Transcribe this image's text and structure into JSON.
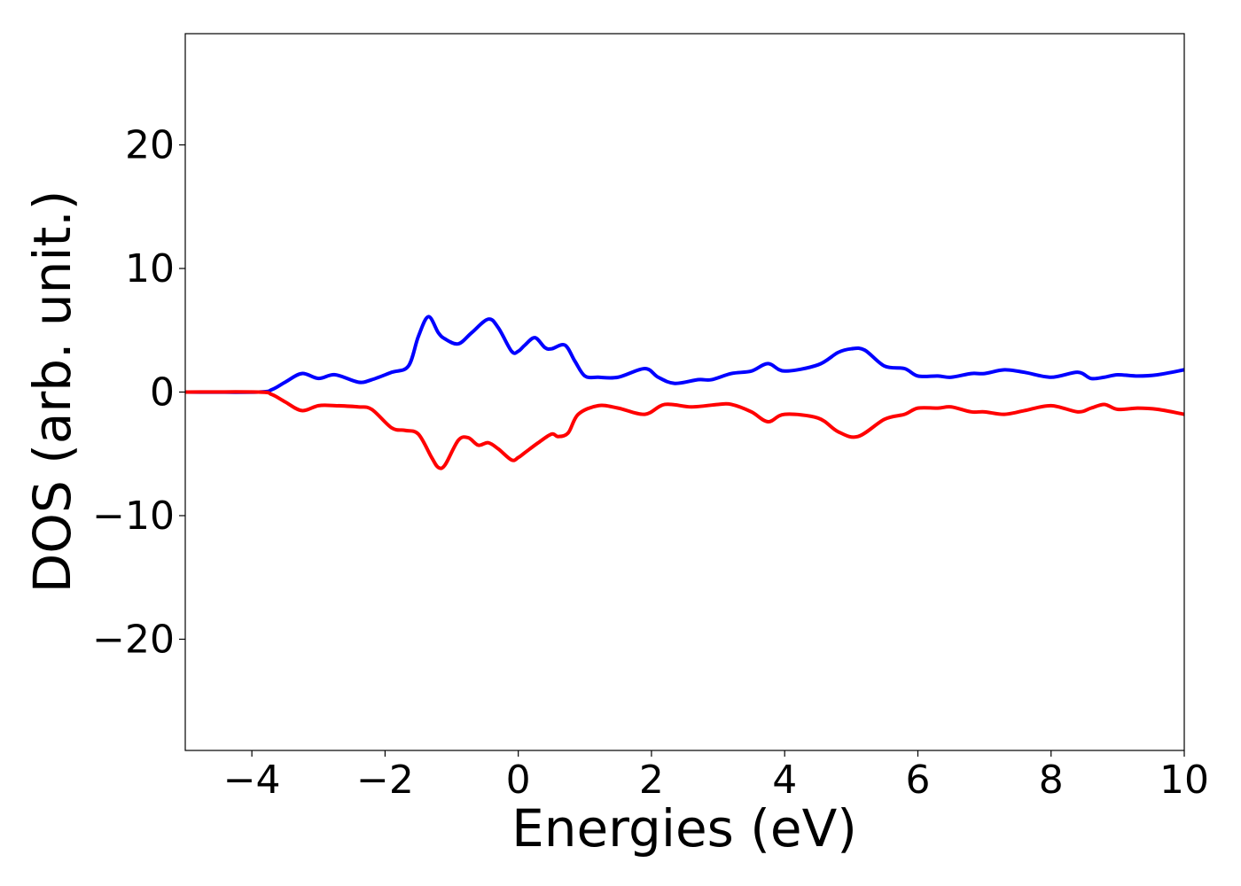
{
  "chart_data": {
    "type": "line",
    "title": "",
    "xlabel": "Energies (eV)",
    "ylabel": "DOS (arb. unit.)",
    "xlim": [
      -5,
      10
    ],
    "ylim": [
      -29,
      29
    ],
    "xticks": [
      -4,
      -2,
      0,
      2,
      4,
      6,
      8,
      10
    ],
    "xtick_labels": [
      "−4",
      "−2",
      "0",
      "2",
      "4",
      "6",
      "8",
      "10"
    ],
    "yticks": [
      20,
      10,
      0,
      -10,
      -20
    ],
    "ytick_labels": [
      "20",
      "10",
      "0",
      "−10",
      "−20"
    ],
    "grid": false,
    "legend": "none",
    "series": [
      {
        "color": "#0000ff",
        "x": [
          -5,
          -3.9,
          -3.7,
          -3.5,
          -3.25,
          -3.0,
          -2.75,
          -2.4,
          -2.2,
          -1.9,
          -1.65,
          -1.5,
          -1.35,
          -1.2,
          -1.1,
          -0.9,
          -0.7,
          -0.45,
          -0.3,
          -0.1,
          0.0,
          0.1,
          0.25,
          0.4,
          0.5,
          0.7,
          0.85,
          1.0,
          1.2,
          1.5,
          1.9,
          2.1,
          2.35,
          2.7,
          2.9,
          3.2,
          3.5,
          3.75,
          4.0,
          4.5,
          4.8,
          5.0,
          5.2,
          5.5,
          5.8,
          6.0,
          6.3,
          6.5,
          6.8,
          7.0,
          7.3,
          7.6,
          8.0,
          8.4,
          8.6,
          8.8,
          9.0,
          9.3,
          9.6,
          10.0
        ],
        "y": [
          0,
          0,
          0.2,
          0.8,
          1.5,
          1.1,
          1.4,
          0.8,
          1.0,
          1.6,
          2.1,
          4.5,
          6.1,
          4.8,
          4.3,
          3.9,
          4.8,
          5.9,
          5.2,
          3.3,
          3.3,
          3.8,
          4.4,
          3.6,
          3.5,
          3.8,
          2.5,
          1.3,
          1.2,
          1.2,
          1.9,
          1.2,
          0.7,
          1.0,
          1.0,
          1.5,
          1.7,
          2.3,
          1.7,
          2.2,
          3.2,
          3.5,
          3.4,
          2.1,
          1.9,
          1.3,
          1.3,
          1.2,
          1.5,
          1.5,
          1.8,
          1.6,
          1.2,
          1.6,
          1.1,
          1.2,
          1.4,
          1.3,
          1.4,
          1.8
        ]
      },
      {
        "color": "#ff0000",
        "x": [
          -5,
          -3.9,
          -3.7,
          -3.5,
          -3.25,
          -3.0,
          -2.75,
          -2.4,
          -2.2,
          -1.9,
          -1.7,
          -1.5,
          -1.3,
          -1.2,
          -1.1,
          -0.9,
          -0.75,
          -0.6,
          -0.45,
          -0.3,
          -0.1,
          0.0,
          0.1,
          0.3,
          0.5,
          0.6,
          0.75,
          0.9,
          1.2,
          1.5,
          1.9,
          2.2,
          2.6,
          3.0,
          3.2,
          3.5,
          3.75,
          4.0,
          4.5,
          4.8,
          5.1,
          5.5,
          5.8,
          6.0,
          6.3,
          6.5,
          6.8,
          7.0,
          7.3,
          7.6,
          8.0,
          8.4,
          8.6,
          8.8,
          9.0,
          9.3,
          9.6,
          10.0
        ],
        "y": [
          0,
          0,
          -0.2,
          -0.8,
          -1.5,
          -1.1,
          -1.1,
          -1.2,
          -1.4,
          -2.9,
          -3.1,
          -3.4,
          -5.3,
          -6.1,
          -5.9,
          -3.9,
          -3.7,
          -4.3,
          -4.1,
          -4.6,
          -5.5,
          -5.3,
          -4.9,
          -4.1,
          -3.4,
          -3.6,
          -3.3,
          -1.8,
          -1.1,
          -1.3,
          -1.8,
          -1.0,
          -1.2,
          -1.0,
          -1.0,
          -1.6,
          -2.4,
          -1.8,
          -2.1,
          -3.2,
          -3.6,
          -2.2,
          -1.8,
          -1.3,
          -1.3,
          -1.2,
          -1.6,
          -1.6,
          -1.8,
          -1.5,
          -1.1,
          -1.6,
          -1.3,
          -1.0,
          -1.4,
          -1.3,
          -1.4,
          -1.8
        ]
      }
    ]
  }
}
